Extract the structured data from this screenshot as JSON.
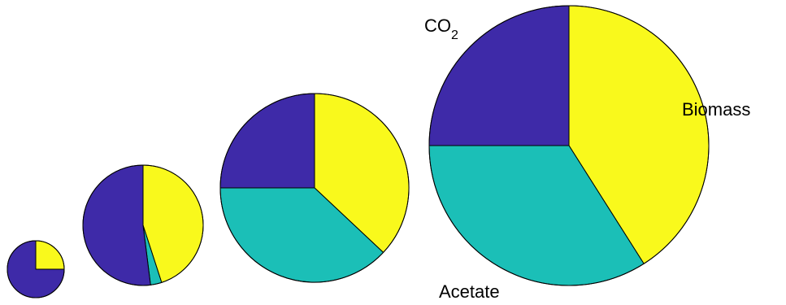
{
  "chart_data": {
    "type": "pie",
    "categories": [
      "Biomass",
      "Acetate",
      "CO2"
    ],
    "colors": {
      "Biomass": "#F9F91C",
      "Acetate": "#1BBFB7",
      "CO2": "#3E2AA8"
    },
    "pies": [
      {
        "values": {
          "Biomass": 0.25,
          "Acetate": 0.0,
          "CO2": 0.75
        }
      },
      {
        "values": {
          "Biomass": 0.45,
          "Acetate": 0.03,
          "CO2": 0.52
        }
      },
      {
        "values": {
          "Biomass": 0.37,
          "Acetate": 0.38,
          "CO2": 0.25
        }
      },
      {
        "values": {
          "Biomass": 0.41,
          "Acetate": 0.34,
          "CO2": 0.25
        }
      }
    ],
    "labels": {
      "biomass": "Biomass",
      "acetate": "Acetate",
      "co2_main": "CO",
      "co2_subscript": "2"
    },
    "legend": "none",
    "grid": false
  }
}
